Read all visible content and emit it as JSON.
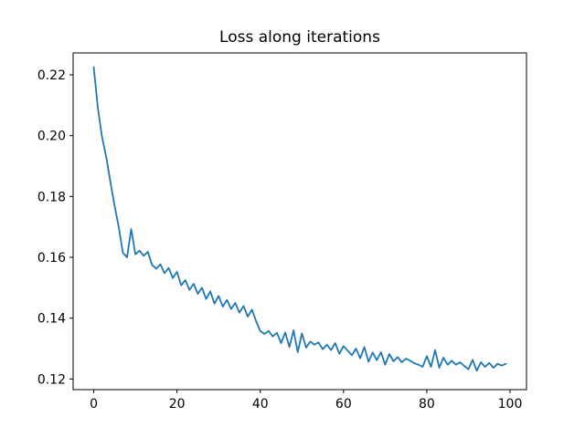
{
  "figure": {
    "background": "#ffffff",
    "text_color": "#000000",
    "spine_color": "#000000"
  },
  "chart_data": {
    "type": "line",
    "title": "Loss along iterations",
    "xlabel": "",
    "ylabel": "",
    "grid": false,
    "legend": null,
    "line_color": "#1f77b4",
    "xlim": [
      -4.95,
      103.95
    ],
    "ylim": [
      0.1165,
      0.2272
    ],
    "xticks": [
      0,
      20,
      40,
      60,
      80,
      100
    ],
    "xtick_labels": [
      "0",
      "20",
      "40",
      "60",
      "80",
      "100"
    ],
    "yticks": [
      0.12,
      0.14,
      0.16,
      0.18,
      0.2,
      0.22
    ],
    "ytick_labels": [
      "0.12",
      "0.14",
      "0.16",
      "0.18",
      "0.20",
      "0.22"
    ],
    "x": [
      0,
      1,
      2,
      3,
      4,
      5,
      6,
      7,
      8,
      9,
      10,
      11,
      12,
      13,
      14,
      15,
      16,
      17,
      18,
      19,
      20,
      21,
      22,
      23,
      24,
      25,
      26,
      27,
      28,
      29,
      30,
      31,
      32,
      33,
      34,
      35,
      36,
      37,
      38,
      39,
      40,
      41,
      42,
      43,
      44,
      45,
      46,
      47,
      48,
      49,
      50,
      51,
      52,
      53,
      54,
      55,
      56,
      57,
      58,
      59,
      60,
      61,
      62,
      63,
      64,
      65,
      66,
      67,
      68,
      69,
      70,
      71,
      72,
      73,
      74,
      75,
      76,
      77,
      78,
      79,
      80,
      81,
      82,
      83,
      84,
      85,
      86,
      87,
      88,
      89,
      90,
      91,
      92,
      93,
      94,
      95,
      96,
      97,
      98,
      99
    ],
    "values": [
      0.2225,
      0.209,
      0.1995,
      0.193,
      0.1848,
      0.177,
      0.17,
      0.1615,
      0.16,
      0.1693,
      0.161,
      0.1622,
      0.1605,
      0.1618,
      0.1575,
      0.1563,
      0.1577,
      0.1548,
      0.1565,
      0.1532,
      0.1552,
      0.1508,
      0.1525,
      0.1493,
      0.1513,
      0.148,
      0.15,
      0.1463,
      0.1488,
      0.1448,
      0.1473,
      0.1438,
      0.146,
      0.143,
      0.145,
      0.1418,
      0.144,
      0.1405,
      0.1428,
      0.139,
      0.1358,
      0.1348,
      0.1358,
      0.134,
      0.1352,
      0.1318,
      0.1353,
      0.1305,
      0.136,
      0.1288,
      0.135,
      0.1303,
      0.1323,
      0.1313,
      0.132,
      0.1298,
      0.1313,
      0.1295,
      0.1318,
      0.1283,
      0.1308,
      0.1293,
      0.1278,
      0.13,
      0.1268,
      0.1305,
      0.1257,
      0.1287,
      0.1262,
      0.1288,
      0.1247,
      0.1282,
      0.1258,
      0.1272,
      0.1255,
      0.1267,
      0.126,
      0.1252,
      0.1247,
      0.124,
      0.1275,
      0.124,
      0.1295,
      0.1237,
      0.127,
      0.1247,
      0.126,
      0.1247,
      0.1255,
      0.1243,
      0.1232,
      0.1263,
      0.1227,
      0.1255,
      0.124,
      0.1253,
      0.1237,
      0.125,
      0.1244,
      0.125
    ]
  }
}
